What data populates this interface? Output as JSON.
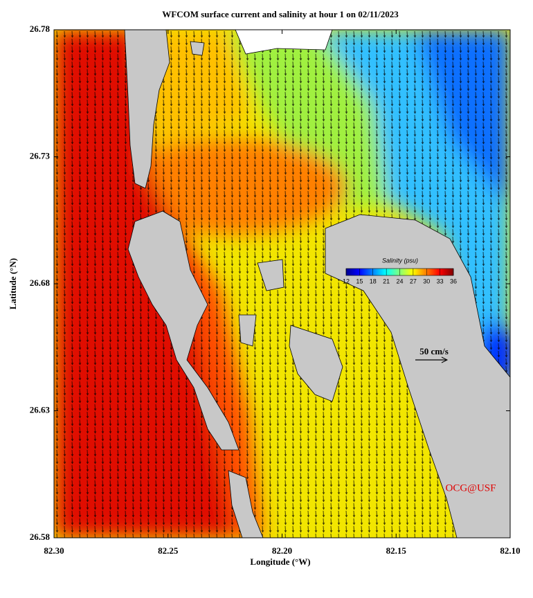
{
  "chart_data": {
    "type": "map",
    "title": "WFCOM surface current and salinity at hour 1 on 02/11/2023",
    "x_label": "Longitude (°W)",
    "y_label": "Latitude (°N)",
    "xlim": [
      82.3,
      82.1
    ],
    "xticks": [
      {
        "value": 82.3,
        "label": "82.30"
      },
      82.25,
      {
        "value": 82.2,
        "label": "82.20"
      },
      82.15,
      {
        "value": 82.1,
        "label": "82.10"
      }
    ],
    "ylim": [
      26.58,
      26.78
    ],
    "yticks": [
      26.58,
      26.63,
      26.68,
      26.73,
      26.78
    ],
    "colorbar": {
      "label": "Salinity (psu)",
      "lim": [
        12,
        36
      ],
      "ticks": [
        12,
        15,
        18,
        21,
        24,
        27,
        30,
        33,
        36
      ]
    },
    "scale_label": "50 cm/s",
    "credit": "OCG@USF"
  }
}
